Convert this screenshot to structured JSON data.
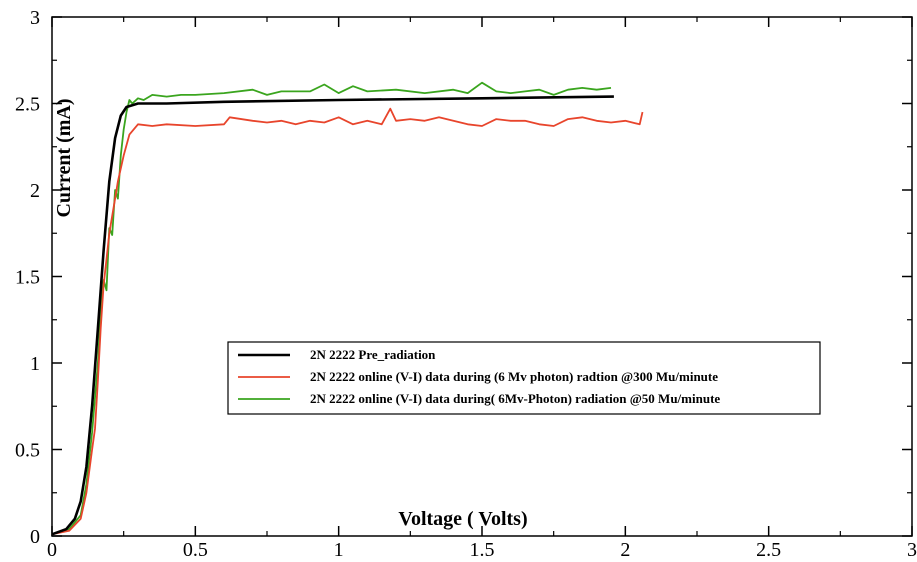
{
  "chart_data": {
    "type": "line",
    "title": "",
    "xlabel": "Voltage ( Volts)",
    "ylabel": "Current (mA)",
    "xlim": [
      0,
      3
    ],
    "ylim": [
      0,
      3
    ],
    "x_ticks": [
      "0",
      "0.5",
      "1",
      "1.5",
      "2",
      "2.5",
      "3"
    ],
    "y_ticks": [
      "0",
      "0.5",
      "1",
      "1.5",
      "2",
      "2.5",
      "3"
    ],
    "grid": false,
    "legend_position": "center",
    "series": [
      {
        "name": "2N 2222 Pre_radiation",
        "color": "#000000",
        "x": [
          0,
          0.05,
          0.08,
          0.1,
          0.12,
          0.14,
          0.16,
          0.18,
          0.2,
          0.22,
          0.24,
          0.26,
          0.28,
          0.3,
          0.35,
          0.4,
          0.6,
          1.0,
          1.5,
          1.96
        ],
        "y": [
          0.01,
          0.04,
          0.1,
          0.2,
          0.4,
          0.75,
          1.2,
          1.65,
          2.05,
          2.3,
          2.43,
          2.48,
          2.49,
          2.5,
          2.5,
          2.5,
          2.51,
          2.52,
          2.53,
          2.54
        ]
      },
      {
        "name": "2N 2222 online (V-I) data during (6 Mv photon) radtion @300 Mu/minute",
        "color": "#e8452c",
        "x": [
          0,
          0.06,
          0.1,
          0.12,
          0.14,
          0.15,
          0.16,
          0.17,
          0.18,
          0.19,
          0.2,
          0.21,
          0.22,
          0.23,
          0.25,
          0.27,
          0.3,
          0.35,
          0.4,
          0.5,
          0.6,
          0.62,
          0.7,
          0.75,
          0.8,
          0.85,
          0.9,
          0.95,
          1.0,
          1.05,
          1.1,
          1.15,
          1.18,
          1.2,
          1.25,
          1.3,
          1.35,
          1.4,
          1.45,
          1.5,
          1.55,
          1.6,
          1.65,
          1.7,
          1.75,
          1.8,
          1.85,
          1.9,
          1.95,
          2.0,
          2.05,
          2.06
        ],
        "y": [
          0.01,
          0.03,
          0.1,
          0.25,
          0.5,
          0.62,
          0.9,
          1.2,
          1.45,
          1.6,
          1.75,
          1.85,
          1.95,
          2.05,
          2.2,
          2.32,
          2.38,
          2.37,
          2.38,
          2.37,
          2.38,
          2.42,
          2.4,
          2.39,
          2.4,
          2.38,
          2.4,
          2.39,
          2.42,
          2.38,
          2.4,
          2.38,
          2.47,
          2.4,
          2.41,
          2.4,
          2.42,
          2.4,
          2.38,
          2.37,
          2.41,
          2.4,
          2.4,
          2.38,
          2.37,
          2.41,
          2.42,
          2.4,
          2.39,
          2.4,
          2.38,
          2.45
        ]
      },
      {
        "name": "2N 2222 online (V-I) data during( 6Mv-Photon) radiation @50 Mu/minute",
        "color": "#3aa51e",
        "x": [
          0,
          0.06,
          0.1,
          0.12,
          0.14,
          0.16,
          0.17,
          0.18,
          0.19,
          0.2,
          0.21,
          0.22,
          0.23,
          0.24,
          0.25,
          0.26,
          0.27,
          0.28,
          0.3,
          0.32,
          0.35,
          0.4,
          0.45,
          0.5,
          0.6,
          0.7,
          0.75,
          0.8,
          0.9,
          0.95,
          1.0,
          1.05,
          1.1,
          1.2,
          1.3,
          1.4,
          1.45,
          1.5,
          1.55,
          1.6,
          1.65,
          1.7,
          1.75,
          1.8,
          1.85,
          1.9,
          1.95
        ],
        "y": [
          0.01,
          0.04,
          0.12,
          0.3,
          0.6,
          1.0,
          1.3,
          1.48,
          1.42,
          1.78,
          1.74,
          2.0,
          1.95,
          2.2,
          2.35,
          2.45,
          2.52,
          2.5,
          2.53,
          2.52,
          2.55,
          2.54,
          2.55,
          2.55,
          2.56,
          2.58,
          2.55,
          2.57,
          2.57,
          2.61,
          2.56,
          2.6,
          2.57,
          2.58,
          2.56,
          2.58,
          2.56,
          2.62,
          2.57,
          2.56,
          2.57,
          2.58,
          2.55,
          2.58,
          2.59,
          2.58,
          2.59
        ]
      }
    ]
  }
}
